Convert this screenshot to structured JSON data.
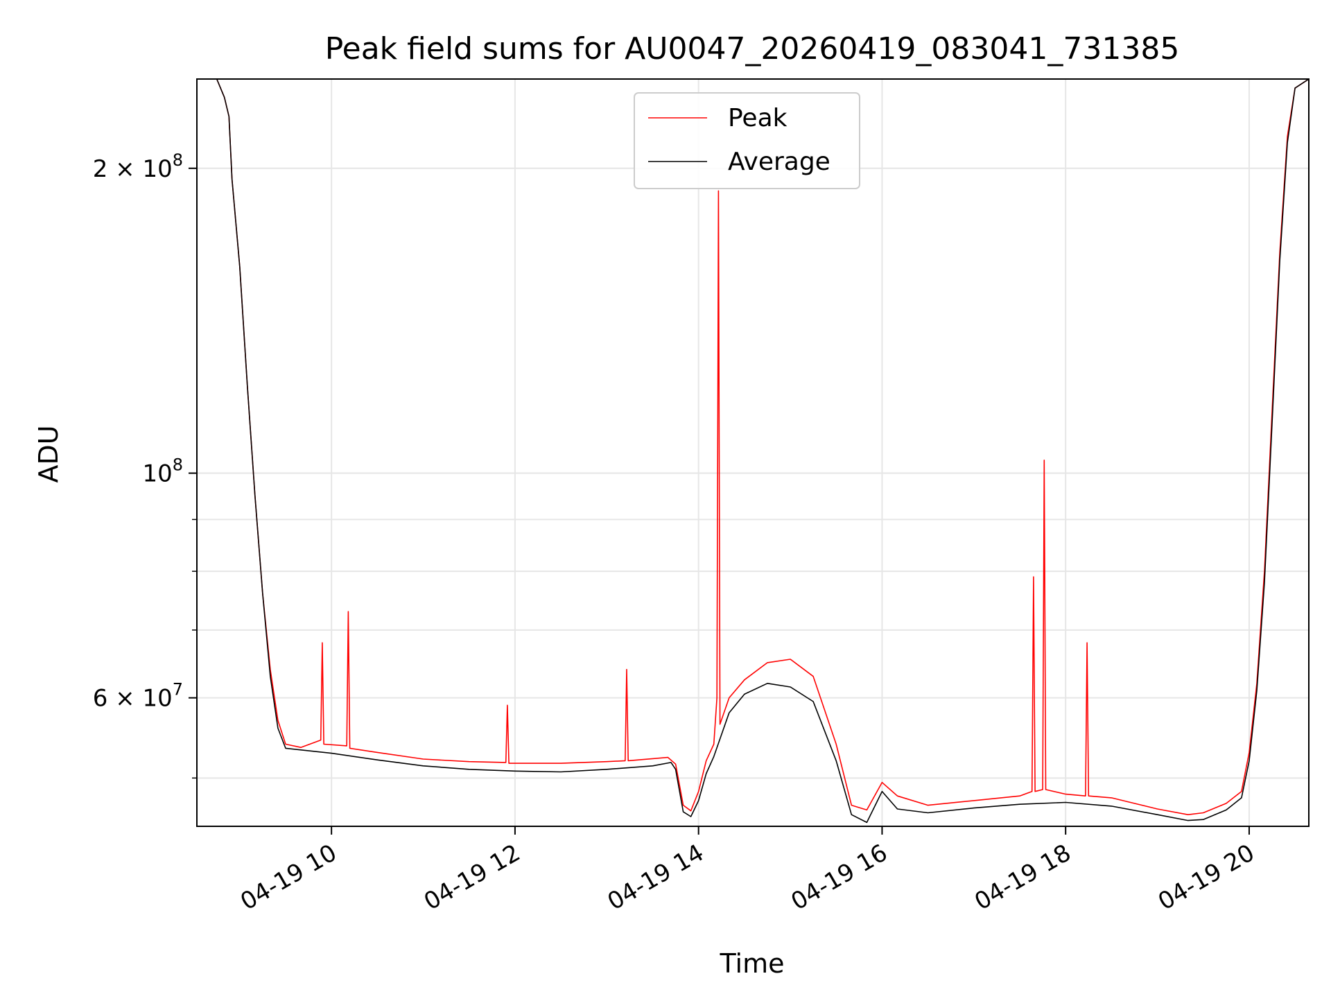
{
  "chart_data": {
    "type": "line",
    "title": "Peak field sums for AU0047_20260419_083041_731385",
    "xlabel": "Time",
    "ylabel": "ADU",
    "y_scale": "log",
    "xlim": [
      "2026-04-19 08:32",
      "2026-04-19 20:39"
    ],
    "ylim": [
      44800000,
      245000000
    ],
    "grid": true,
    "legend_position": "upper center",
    "x_ticks": [
      {
        "t": "2026-04-19 10:00",
        "label": "04-19 10"
      },
      {
        "t": "2026-04-19 12:00",
        "label": "04-19 12"
      },
      {
        "t": "2026-04-19 14:00",
        "label": "04-19 14"
      },
      {
        "t": "2026-04-19 16:00",
        "label": "04-19 16"
      },
      {
        "t": "2026-04-19 18:00",
        "label": "04-19 18"
      },
      {
        "t": "2026-04-19 20:00",
        "label": "04-19 20"
      }
    ],
    "y_major_ticks": [
      {
        "value": 60000000,
        "mantissa": "6",
        "base": "10",
        "exp": "7"
      },
      {
        "value": 100000000,
        "mantissa": "",
        "base": "10",
        "exp": "8"
      },
      {
        "value": 200000000,
        "mantissa": "2",
        "base": "10",
        "exp": "8"
      }
    ],
    "y_minor_ticks": [
      50000000,
      70000000,
      80000000,
      90000000
    ],
    "series": [
      {
        "name": "Peak",
        "color": "#ff0000",
        "points": [
          [
            "2026-04-19 08:32",
            245000000
          ],
          [
            "2026-04-19 08:45",
            245000000
          ],
          [
            "2026-04-19 08:50",
            235000000
          ],
          [
            "2026-04-19 08:53",
            225000000
          ],
          [
            "2026-04-19 08:55",
            195000000
          ],
          [
            "2026-04-19 09:00",
            160000000
          ],
          [
            "2026-04-19 09:05",
            122000000
          ],
          [
            "2026-04-19 09:10",
            95000000
          ],
          [
            "2026-04-19 09:15",
            76000000
          ],
          [
            "2026-04-19 09:20",
            64000000
          ],
          [
            "2026-04-19 09:25",
            57000000
          ],
          [
            "2026-04-19 09:30",
            54000000
          ],
          [
            "2026-04-19 09:40",
            53600000
          ],
          [
            "2026-04-19 09:53",
            54500000
          ],
          [
            "2026-04-19 09:54",
            68000000
          ],
          [
            "2026-04-19 09:55",
            54000000
          ],
          [
            "2026-04-19 10:10",
            53800000
          ],
          [
            "2026-04-19 10:11",
            73000000
          ],
          [
            "2026-04-19 10:12",
            53500000
          ],
          [
            "2026-04-19 10:30",
            53000000
          ],
          [
            "2026-04-19 11:00",
            52200000
          ],
          [
            "2026-04-19 11:30",
            51900000
          ],
          [
            "2026-04-19 11:54",
            51800000
          ],
          [
            "2026-04-19 11:55",
            59000000
          ],
          [
            "2026-04-19 11:56",
            51700000
          ],
          [
            "2026-04-19 12:30",
            51700000
          ],
          [
            "2026-04-19 13:00",
            51900000
          ],
          [
            "2026-04-19 13:12",
            52000000
          ],
          [
            "2026-04-19 13:13",
            64000000
          ],
          [
            "2026-04-19 13:14",
            52000000
          ],
          [
            "2026-04-19 13:40",
            52400000
          ],
          [
            "2026-04-19 13:45",
            51600000
          ],
          [
            "2026-04-19 13:50",
            47000000
          ],
          [
            "2026-04-19 13:55",
            46400000
          ],
          [
            "2026-04-19 14:00",
            48500000
          ],
          [
            "2026-04-19 14:05",
            52000000
          ],
          [
            "2026-04-19 14:10",
            54000000
          ],
          [
            "2026-04-19 14:12",
            60000000
          ],
          [
            "2026-04-19 14:13",
            190000000
          ],
          [
            "2026-04-19 14:14",
            56500000
          ],
          [
            "2026-04-19 14:20",
            60000000
          ],
          [
            "2026-04-19 14:30",
            62500000
          ],
          [
            "2026-04-19 14:45",
            65000000
          ],
          [
            "2026-04-19 15:00",
            65500000
          ],
          [
            "2026-04-19 15:15",
            63000000
          ],
          [
            "2026-04-19 15:30",
            54000000
          ],
          [
            "2026-04-19 15:40",
            47000000
          ],
          [
            "2026-04-19 15:50",
            46500000
          ],
          [
            "2026-04-19 16:00",
            49500000
          ],
          [
            "2026-04-19 16:10",
            48000000
          ],
          [
            "2026-04-19 16:30",
            47000000
          ],
          [
            "2026-04-19 17:00",
            47500000
          ],
          [
            "2026-04-19 17:30",
            48000000
          ],
          [
            "2026-04-19 17:38",
            48500000
          ],
          [
            "2026-04-19 17:39",
            79000000
          ],
          [
            "2026-04-19 17:40",
            48500000
          ],
          [
            "2026-04-19 17:45",
            48700000
          ],
          [
            "2026-04-19 17:46",
            103000000
          ],
          [
            "2026-04-19 17:47",
            48700000
          ],
          [
            "2026-04-19 18:00",
            48200000
          ],
          [
            "2026-04-19 18:13",
            48000000
          ],
          [
            "2026-04-19 18:14",
            68000000
          ],
          [
            "2026-04-19 18:15",
            48000000
          ],
          [
            "2026-04-19 18:30",
            47800000
          ],
          [
            "2026-04-19 19:00",
            46600000
          ],
          [
            "2026-04-19 19:20",
            46000000
          ],
          [
            "2026-04-19 19:30",
            46200000
          ],
          [
            "2026-04-19 19:45",
            47200000
          ],
          [
            "2026-04-19 19:55",
            48500000
          ],
          [
            "2026-04-19 20:00",
            53000000
          ],
          [
            "2026-04-19 20:05",
            62000000
          ],
          [
            "2026-04-19 20:10",
            80000000
          ],
          [
            "2026-04-19 20:15",
            115000000
          ],
          [
            "2026-04-19 20:20",
            165000000
          ],
          [
            "2026-04-19 20:25",
            215000000
          ],
          [
            "2026-04-19 20:30",
            240000000
          ],
          [
            "2026-04-19 20:39",
            245000000
          ]
        ]
      },
      {
        "name": "Average",
        "color": "#000000",
        "points": [
          [
            "2026-04-19 08:32",
            245000000
          ],
          [
            "2026-04-19 08:45",
            245000000
          ],
          [
            "2026-04-19 08:50",
            235000000
          ],
          [
            "2026-04-19 08:53",
            225000000
          ],
          [
            "2026-04-19 08:55",
            195000000
          ],
          [
            "2026-04-19 09:00",
            160000000
          ],
          [
            "2026-04-19 09:05",
            122000000
          ],
          [
            "2026-04-19 09:10",
            95000000
          ],
          [
            "2026-04-19 09:15",
            76000000
          ],
          [
            "2026-04-19 09:20",
            63000000
          ],
          [
            "2026-04-19 09:25",
            56000000
          ],
          [
            "2026-04-19 09:30",
            53500000
          ],
          [
            "2026-04-19 10:00",
            52900000
          ],
          [
            "2026-04-19 10:30",
            52100000
          ],
          [
            "2026-04-19 11:00",
            51400000
          ],
          [
            "2026-04-19 11:30",
            51000000
          ],
          [
            "2026-04-19 12:00",
            50800000
          ],
          [
            "2026-04-19 12:30",
            50700000
          ],
          [
            "2026-04-19 13:00",
            51000000
          ],
          [
            "2026-04-19 13:30",
            51400000
          ],
          [
            "2026-04-19 13:42",
            51800000
          ],
          [
            "2026-04-19 13:45",
            51000000
          ],
          [
            "2026-04-19 13:50",
            46300000
          ],
          [
            "2026-04-19 13:55",
            45800000
          ],
          [
            "2026-04-19 14:00",
            47500000
          ],
          [
            "2026-04-19 14:05",
            50500000
          ],
          [
            "2026-04-19 14:10",
            52500000
          ],
          [
            "2026-04-19 14:20",
            58000000
          ],
          [
            "2026-04-19 14:30",
            60500000
          ],
          [
            "2026-04-19 14:45",
            62000000
          ],
          [
            "2026-04-19 15:00",
            61500000
          ],
          [
            "2026-04-19 15:15",
            59500000
          ],
          [
            "2026-04-19 15:30",
            52000000
          ],
          [
            "2026-04-19 15:40",
            46000000
          ],
          [
            "2026-04-19 15:50",
            45200000
          ],
          [
            "2026-04-19 16:00",
            48500000
          ],
          [
            "2026-04-19 16:10",
            46600000
          ],
          [
            "2026-04-19 16:30",
            46200000
          ],
          [
            "2026-04-19 17:00",
            46700000
          ],
          [
            "2026-04-19 17:30",
            47100000
          ],
          [
            "2026-04-19 18:00",
            47300000
          ],
          [
            "2026-04-19 18:30",
            46900000
          ],
          [
            "2026-04-19 19:00",
            46000000
          ],
          [
            "2026-04-19 19:20",
            45400000
          ],
          [
            "2026-04-19 19:30",
            45500000
          ],
          [
            "2026-04-19 19:45",
            46500000
          ],
          [
            "2026-04-19 19:55",
            47800000
          ],
          [
            "2026-04-19 20:00",
            52000000
          ],
          [
            "2026-04-19 20:05",
            61000000
          ],
          [
            "2026-04-19 20:10",
            78000000
          ],
          [
            "2026-04-19 20:15",
            112000000
          ],
          [
            "2026-04-19 20:20",
            162000000
          ],
          [
            "2026-04-19 20:25",
            212000000
          ],
          [
            "2026-04-19 20:30",
            240000000
          ],
          [
            "2026-04-19 20:39",
            245000000
          ]
        ]
      }
    ]
  }
}
